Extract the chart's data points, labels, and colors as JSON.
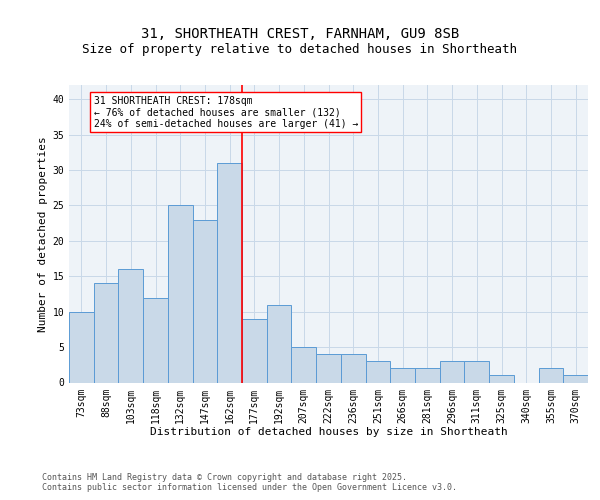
{
  "title_line1": "31, SHORTHEATH CREST, FARNHAM, GU9 8SB",
  "title_line2": "Size of property relative to detached houses in Shortheath",
  "xlabel": "Distribution of detached houses by size in Shortheath",
  "ylabel": "Number of detached properties",
  "bar_labels": [
    "73sqm",
    "88sqm",
    "103sqm",
    "118sqm",
    "132sqm",
    "147sqm",
    "162sqm",
    "177sqm",
    "192sqm",
    "207sqm",
    "222sqm",
    "236sqm",
    "251sqm",
    "266sqm",
    "281sqm",
    "296sqm",
    "311sqm",
    "325sqm",
    "340sqm",
    "355sqm",
    "370sqm"
  ],
  "bar_values": [
    10,
    14,
    16,
    12,
    25,
    23,
    31,
    9,
    11,
    5,
    4,
    4,
    3,
    2,
    2,
    3,
    3,
    1,
    0,
    2,
    1
  ],
  "bar_color": "#c9d9e8",
  "bar_edge_color": "#5b9bd5",
  "vline_index": 7,
  "annotation_text": "31 SHORTHEATH CREST: 178sqm\n← 76% of detached houses are smaller (132)\n24% of semi-detached houses are larger (41) →",
  "annotation_box_color": "white",
  "annotation_box_edge_color": "red",
  "vline_color": "red",
  "ylim": [
    0,
    42
  ],
  "yticks": [
    0,
    5,
    10,
    15,
    20,
    25,
    30,
    35,
    40
  ],
  "footer_text": "Contains HM Land Registry data © Crown copyright and database right 2025.\nContains public sector information licensed under the Open Government Licence v3.0.",
  "bg_color": "#eef3f8",
  "grid_color": "#c8d8e8",
  "title_fontsize": 10,
  "subtitle_fontsize": 9,
  "axis_label_fontsize": 8,
  "tick_fontsize": 7,
  "annotation_fontsize": 7,
  "footer_fontsize": 6
}
